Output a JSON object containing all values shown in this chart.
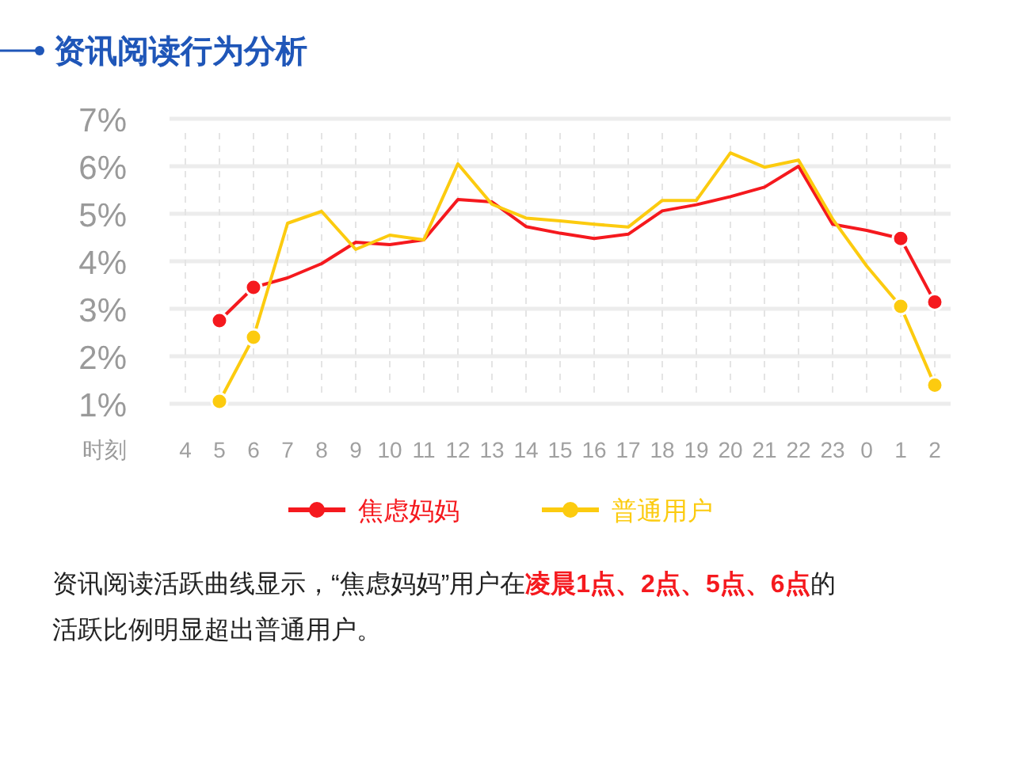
{
  "chart_data": {
    "type": "line",
    "title": "资讯阅读行为分析",
    "xlabel": "时刻",
    "categories": [
      "4",
      "5",
      "6",
      "7",
      "8",
      "9",
      "10",
      "11",
      "12",
      "13",
      "14",
      "15",
      "16",
      "17",
      "18",
      "19",
      "20",
      "21",
      "22",
      "23",
      "0",
      "1",
      "2"
    ],
    "series": [
      {
        "name": "焦虑妈妈",
        "color": "#f5191e",
        "values": [
          null,
          2.75,
          3.45,
          3.65,
          3.95,
          4.4,
          4.35,
          4.45,
          5.3,
          5.25,
          4.73,
          4.59,
          4.48,
          4.57,
          5.06,
          5.19,
          5.36,
          5.56,
          6.0,
          4.78,
          4.65,
          4.48,
          3.14
        ]
      },
      {
        "name": "普通用户",
        "color": "#fccb0f",
        "values": [
          null,
          1.05,
          2.4,
          4.8,
          5.05,
          4.25,
          4.55,
          4.45,
          6.05,
          5.2,
          4.91,
          4.85,
          4.78,
          4.72,
          5.28,
          5.28,
          6.28,
          5.98,
          6.13,
          4.89,
          3.9,
          3.05,
          1.39
        ]
      }
    ],
    "ylim": [
      1,
      7
    ],
    "yticks": [
      {
        "value": 1,
        "label": "1%"
      },
      {
        "value": 2,
        "label": "2%"
      },
      {
        "value": 3,
        "label": "3%"
      },
      {
        "value": 4,
        "label": "4%"
      },
      {
        "value": 5,
        "label": "5%"
      },
      {
        "value": 6,
        "label": "6%"
      },
      {
        "value": 7,
        "label": "7%"
      }
    ],
    "grid": true,
    "legend": "bottom",
    "line_style": "solid",
    "annotations": [
      "资讯阅读活跃曲线显示，“焦虑妈妈”用户在",
      "凌晨1点、2点、5点、6点",
      "的",
      "活跃比例明显超出普通用户。"
    ]
  }
}
